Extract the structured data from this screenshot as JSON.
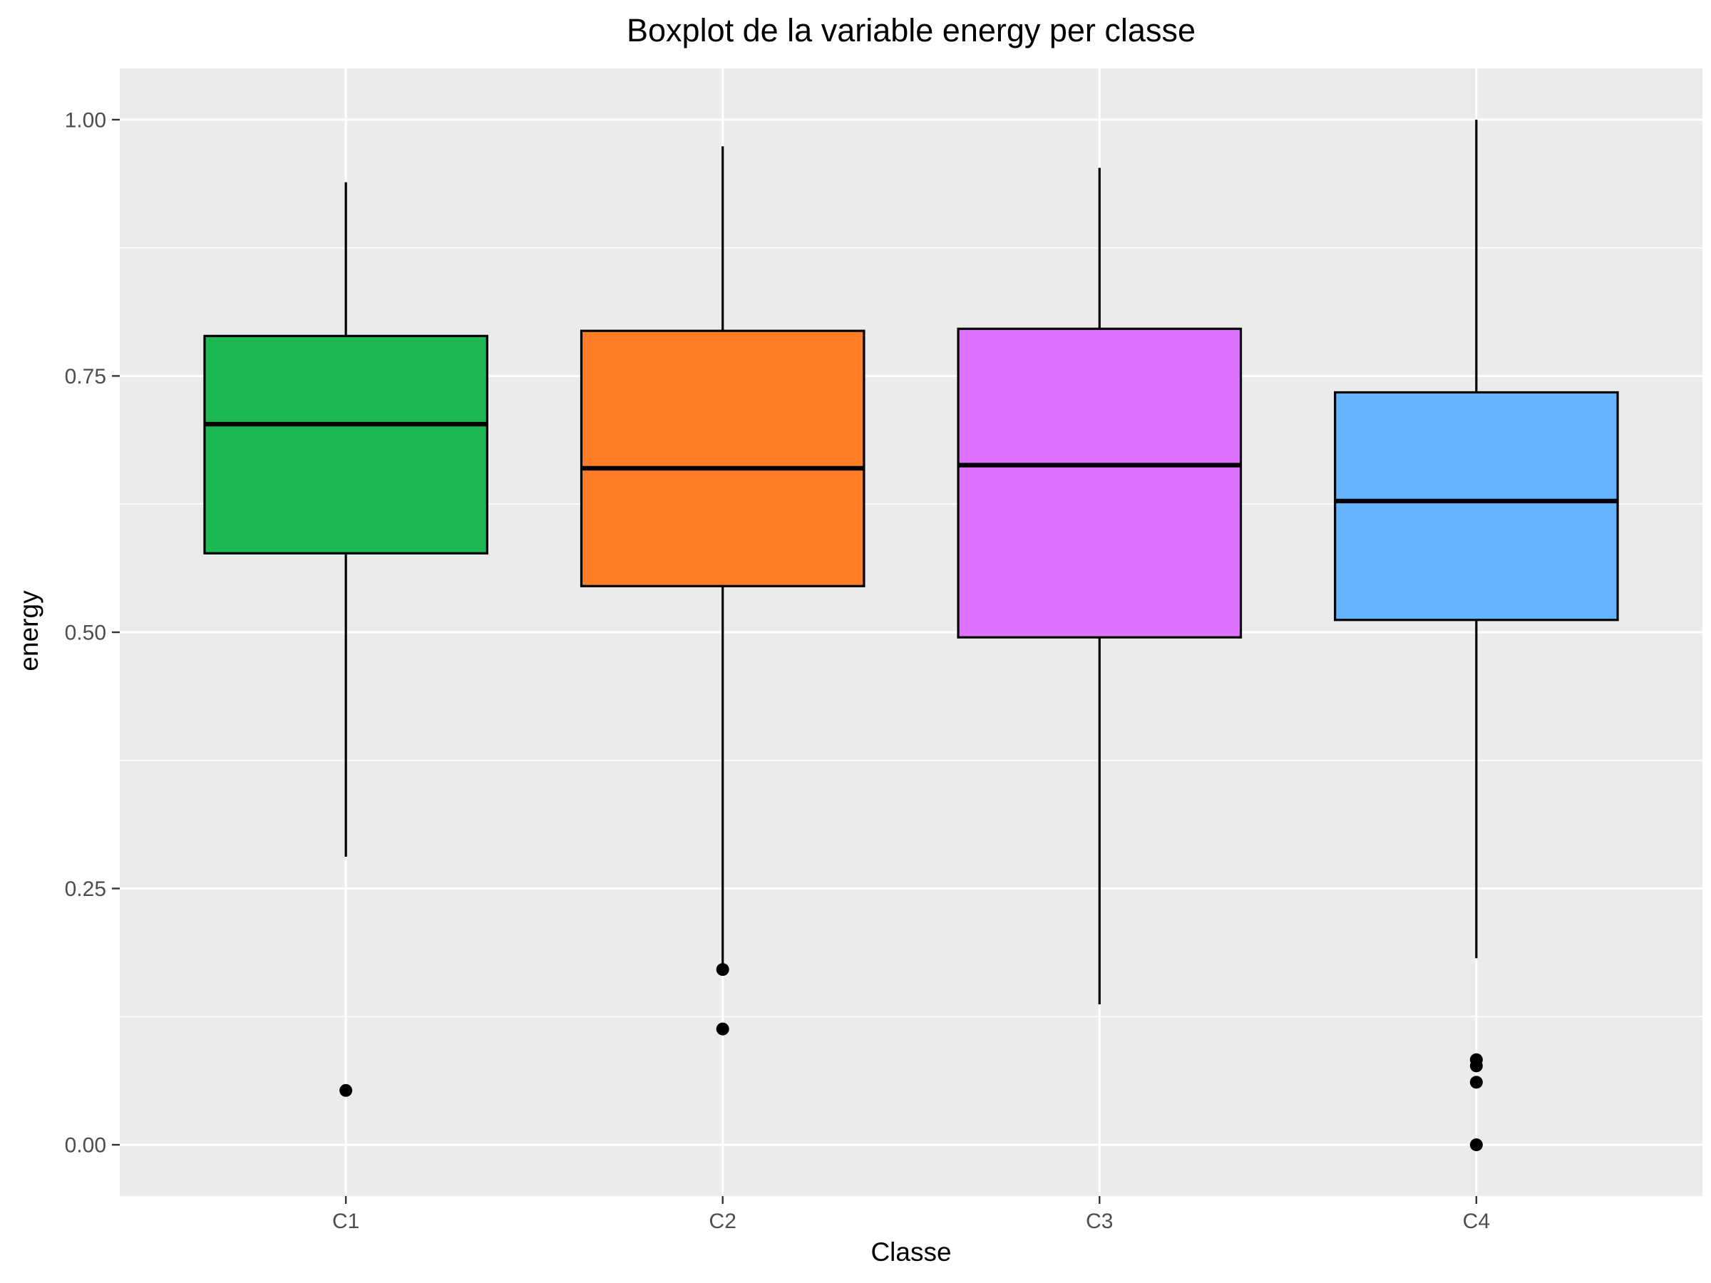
{
  "chart_data": {
    "type": "boxplot",
    "title": "Boxplot de la variable energy per classe",
    "xlabel": "Classe",
    "ylabel": "energy",
    "ylim": [
      -0.05,
      1.05
    ],
    "yticks": [
      0.0,
      0.25,
      0.5,
      0.75,
      1.0
    ],
    "ytick_labels": [
      "0.00",
      "0.25",
      "0.50",
      "0.75",
      "1.00"
    ],
    "grid": true,
    "legend": "none",
    "categories": [
      "C1",
      "C2",
      "C3",
      "C4"
    ],
    "boxes": [
      {
        "category": "C1",
        "whisker_low": 0.281,
        "q1": 0.577,
        "median": 0.703,
        "q3": 0.789,
        "whisker_high": 0.939,
        "outliers": [
          0.053
        ],
        "fill": "#1eb853"
      },
      {
        "category": "C2",
        "whisker_low": 0.177,
        "q1": 0.545,
        "median": 0.66,
        "q3": 0.794,
        "whisker_high": 0.974,
        "outliers": [
          0.171,
          0.113
        ],
        "fill": "#ff7d26"
      },
      {
        "category": "C3",
        "whisker_low": 0.137,
        "q1": 0.495,
        "median": 0.663,
        "q3": 0.796,
        "whisker_high": 0.953,
        "outliers": [],
        "fill": "#df73ff"
      },
      {
        "category": "C4",
        "whisker_low": 0.182,
        "q1": 0.512,
        "median": 0.628,
        "q3": 0.734,
        "whisker_high": 1.0,
        "outliers": [
          0.083,
          0.077,
          0.061,
          0.0
        ],
        "fill": "#64b4ff"
      }
    ],
    "colors": {
      "panel_background": "#ebebeb",
      "grid_line": "#ffffff",
      "box_outline": "#000000",
      "axis_tick": "#333333"
    }
  }
}
